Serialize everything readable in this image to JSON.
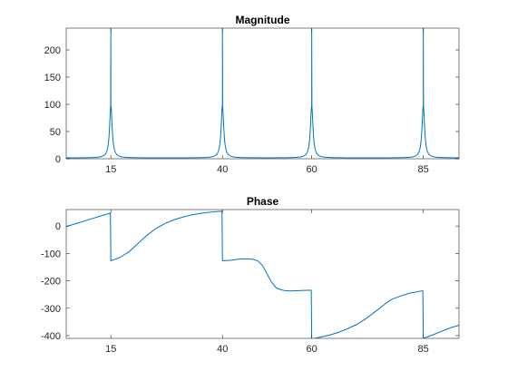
{
  "chart_data": [
    {
      "type": "line",
      "title": "Magnitude",
      "xlim": [
        5,
        93
      ],
      "ylim": [
        0,
        240
      ],
      "xticks": [
        15,
        40,
        60,
        85
      ],
      "yticks": [
        0,
        50,
        100,
        150,
        200
      ],
      "xtick_labels": [
        "15",
        "40",
        "60",
        "85"
      ],
      "ytick_labels": [
        "0",
        "50",
        "100",
        "150",
        "200"
      ],
      "grid": false,
      "peaks": [
        15,
        40,
        60,
        85
      ],
      "peak_value_clipped": 240,
      "baseline_value": 1.5,
      "color": "#0072BD"
    },
    {
      "type": "line",
      "title": "Phase",
      "xlim": [
        5,
        93
      ],
      "ylim": [
        -410,
        60
      ],
      "xticks": [
        15,
        40,
        60,
        85
      ],
      "yticks": [
        0,
        -100,
        -200,
        -300,
        -400
      ],
      "xtick_labels": [
        "15",
        "40",
        "60",
        "85"
      ],
      "ytick_labels": [
        "0",
        "-100",
        "-200",
        "-300",
        "-400"
      ],
      "grid": false,
      "color": "#0072BD",
      "x": [
        5,
        7,
        9,
        11,
        13,
        14.9,
        15.0,
        17,
        19,
        21,
        23,
        25,
        27,
        29,
        31,
        33,
        35,
        37,
        39.9,
        40.0,
        42,
        44,
        46,
        47,
        48,
        49,
        50,
        51,
        52,
        53,
        54,
        55,
        57,
        59.9,
        60.0,
        62,
        64,
        66,
        68,
        70,
        72,
        74,
        75,
        76,
        77,
        78,
        80,
        82,
        84.9,
        85.0,
        87,
        89,
        91,
        93
      ],
      "y": [
        -2,
        8,
        18,
        28,
        38,
        47,
        -127,
        -115,
        -95,
        -65,
        -35,
        -10,
        8,
        22,
        32,
        40,
        46,
        50,
        54,
        -127,
        -125,
        -120,
        -120,
        -122,
        -128,
        -145,
        -175,
        -205,
        -225,
        -232,
        -236,
        -237,
        -236,
        -234,
        -413,
        -405,
        -398,
        -388,
        -375,
        -360,
        -340,
        -315,
        -303,
        -290,
        -277,
        -267,
        -255,
        -245,
        -236,
        -410,
        -398,
        -385,
        -372,
        -362
      ]
    }
  ]
}
